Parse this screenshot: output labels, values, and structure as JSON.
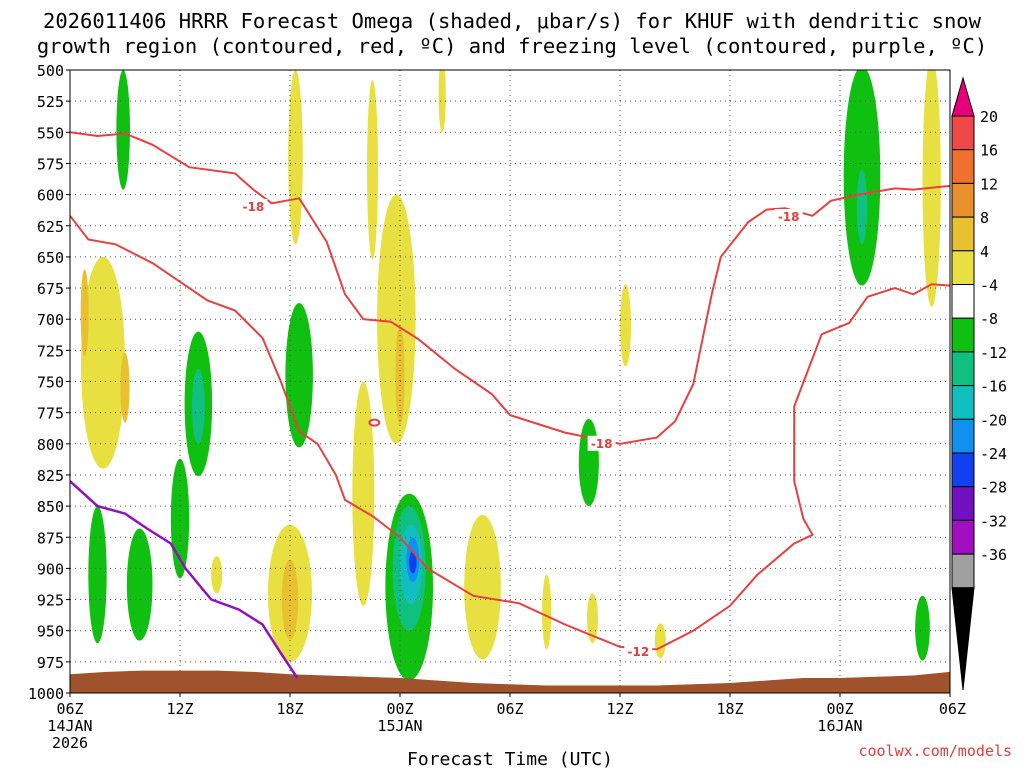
{
  "chart_data": {
    "type": "heatmap",
    "title_line1": "2026011406 HRRR Forecast Omega (shaded, μbar/s) for KHUF with dendritic snow",
    "title_line2": "growth region (contoured, red, ºC) and freezing level (contoured, purple, ºC)",
    "xlabel": "Forecast Time (UTC)",
    "watermark": "coolwx.com/models",
    "x_range_hours": [
      0,
      48
    ],
    "y_range_mb": [
      500,
      1000
    ],
    "x_ticks": [
      {
        "h": 0,
        "label": "06Z",
        "date": "14JAN",
        "year": "2026"
      },
      {
        "h": 6,
        "label": "12Z"
      },
      {
        "h": 12,
        "label": "18Z"
      },
      {
        "h": 18,
        "label": "00Z",
        "date": "15JAN"
      },
      {
        "h": 24,
        "label": "06Z"
      },
      {
        "h": 30,
        "label": "12Z"
      },
      {
        "h": 36,
        "label": "18Z"
      },
      {
        "h": 42,
        "label": "00Z",
        "date": "16JAN"
      },
      {
        "h": 48,
        "label": "06Z"
      }
    ],
    "y_ticks": [
      "500",
      "525",
      "550",
      "575",
      "600",
      "625",
      "650",
      "675",
      "700",
      "725",
      "750",
      "775",
      "800",
      "825",
      "850",
      "875",
      "900",
      "925",
      "950",
      "975",
      "1000"
    ],
    "colorbar": {
      "labels": [
        "20",
        "16",
        "12",
        "8",
        "4",
        "-4",
        "-8",
        "-12",
        "-16",
        "-20",
        "-24",
        "-28",
        "-32",
        "-36"
      ],
      "colors": {
        "top_arrow": "#e8007a",
        "c20": "#f04848",
        "c16": "#f07030",
        "c12": "#e8902c",
        "c8": "#e8c030",
        "c4": "#e8e040",
        "neutral": "#ffffff",
        "cm4": "#10c010",
        "cm8": "#10c080",
        "cm12": "#10c0c0",
        "cm16": "#1090f0",
        "cm20": "#1040f0",
        "cm24": "#7010c0",
        "cm28": "#a010c0",
        "cm32": "#a0a0a0",
        "bottom_arrow": "#000000"
      }
    },
    "isotherm_labels": [
      {
        "text": "-18",
        "h": 10.0,
        "mb": 610
      },
      {
        "text": "-18",
        "h": 39.2,
        "mb": 618
      },
      {
        "text": "-18",
        "h": 29.0,
        "mb": 800
      },
      {
        "text": "-12",
        "h": 31.0,
        "mb": 967
      }
    ],
    "minus18_contour": [
      [
        0,
        550
      ],
      [
        1.5,
        553
      ],
      [
        3,
        551
      ],
      [
        4.5,
        560
      ],
      [
        6.5,
        578
      ],
      [
        9,
        583
      ],
      [
        10,
        596
      ],
      [
        11,
        607
      ],
      [
        12.5,
        603
      ],
      [
        14,
        638
      ],
      [
        15,
        680
      ],
      [
        16,
        700
      ],
      [
        17.5,
        702
      ],
      [
        19,
        716
      ],
      [
        21,
        740
      ],
      [
        23,
        760
      ],
      [
        24,
        777
      ],
      [
        27,
        791
      ],
      [
        30,
        800
      ],
      [
        32,
        795
      ],
      [
        33,
        782
      ],
      [
        34,
        752
      ],
      [
        35,
        680
      ],
      [
        35.5,
        650
      ],
      [
        37,
        622
      ],
      [
        38,
        612
      ],
      [
        39,
        611
      ],
      [
        40.5,
        617
      ],
      [
        41.5,
        605
      ],
      [
        43,
        600
      ],
      [
        45,
        595
      ],
      [
        46,
        596
      ],
      [
        48,
        593
      ]
    ],
    "minus12_contour": [
      [
        0,
        617
      ],
      [
        1,
        636
      ],
      [
        2.5,
        640
      ],
      [
        4.5,
        655
      ],
      [
        6,
        670
      ],
      [
        7.5,
        685
      ],
      [
        9,
        693
      ],
      [
        10.5,
        715
      ],
      [
        11.5,
        750
      ],
      [
        12.5,
        790
      ],
      [
        13.5,
        800
      ],
      [
        14.5,
        825
      ],
      [
        15,
        845
      ],
      [
        16.5,
        858
      ],
      [
        18,
        875
      ],
      [
        19.5,
        900
      ],
      [
        22,
        922
      ],
      [
        24.5,
        928
      ],
      [
        27,
        945
      ],
      [
        30,
        963
      ],
      [
        32,
        965
      ],
      [
        34,
        950
      ],
      [
        36,
        930
      ],
      [
        37.5,
        905
      ],
      [
        39.5,
        880
      ],
      [
        40.5,
        873
      ],
      [
        40,
        860
      ],
      [
        39.5,
        830
      ],
      [
        39.5,
        770
      ],
      [
        41,
        712
      ],
      [
        42.5,
        703
      ],
      [
        43.5,
        682
      ],
      [
        45,
        675
      ],
      [
        46,
        680
      ],
      [
        47,
        672
      ],
      [
        48,
        673
      ]
    ],
    "freezing_level_contour": [
      [
        0,
        830
      ],
      [
        1.5,
        850
      ],
      [
        3,
        856
      ],
      [
        4.2,
        868
      ],
      [
        5.5,
        880
      ],
      [
        6.3,
        900
      ],
      [
        7.7,
        925
      ],
      [
        9.2,
        933
      ],
      [
        10.5,
        945
      ],
      [
        11.5,
        968
      ],
      [
        12.4,
        988
      ]
    ],
    "omega_blobs": [
      {
        "level": -4,
        "h": 2.9,
        "mb": 548,
        "rh": 0.37,
        "rmb": 48
      },
      {
        "level": -4,
        "h": 7.0,
        "mb": 768,
        "rh": 0.75,
        "rmb": 58
      },
      {
        "level": -4,
        "h": 6.0,
        "mb": 860,
        "rh": 0.5,
        "rmb": 48
      },
      {
        "level": -4,
        "h": 1.5,
        "mb": 905,
        "rh": 0.5,
        "rmb": 55
      },
      {
        "level": -4,
        "h": 3.8,
        "mb": 913,
        "rh": 0.7,
        "rmb": 45
      },
      {
        "level": -4,
        "h": 12.5,
        "mb": 745,
        "rh": 0.75,
        "rmb": 58
      },
      {
        "level": -4,
        "h": 18.5,
        "mb": 915,
        "rh": 1.3,
        "rmb": 75
      },
      {
        "level": -4,
        "h": 28.3,
        "mb": 815,
        "rh": 0.55,
        "rmb": 35
      },
      {
        "level": -4,
        "h": 43.2,
        "mb": 585,
        "rh": 1.0,
        "rmb": 88
      },
      {
        "level": -4,
        "h": 46.5,
        "mb": 948,
        "rh": 0.4,
        "rmb": 26
      },
      {
        "level": -8,
        "h": 18.5,
        "mb": 900,
        "rh": 0.9,
        "rmb": 50
      },
      {
        "level": -8,
        "h": 7.0,
        "mb": 770,
        "rh": 0.35,
        "rmb": 30
      },
      {
        "level": -8,
        "h": 43.2,
        "mb": 610,
        "rh": 0.28,
        "rmb": 30
      },
      {
        "level": -12,
        "h": 18.6,
        "mb": 897,
        "rh": 0.6,
        "rmb": 32
      },
      {
        "level": -16,
        "h": 18.7,
        "mb": 893,
        "rh": 0.35,
        "rmb": 18
      },
      {
        "level": -20,
        "h": 18.7,
        "mb": 895,
        "rh": 0.2,
        "rmb": 9
      },
      {
        "level": 4,
        "h": 1.8,
        "mb": 735,
        "rh": 1.2,
        "rmb": 85
      },
      {
        "level": 4,
        "h": 12.0,
        "mb": 920,
        "rh": 1.2,
        "rmb": 55
      },
      {
        "level": 4,
        "h": 12.3,
        "mb": 570,
        "rh": 0.4,
        "rmb": 70
      },
      {
        "level": 4,
        "h": 16.5,
        "mb": 580,
        "rh": 0.3,
        "rmb": 72
      },
      {
        "level": 4,
        "h": 16.0,
        "mb": 840,
        "rh": 0.6,
        "rmb": 90
      },
      {
        "level": 4,
        "h": 17.8,
        "mb": 700,
        "rh": 1.05,
        "rmb": 100
      },
      {
        "level": 4,
        "h": 22.5,
        "mb": 915,
        "rh": 1.0,
        "rmb": 58
      },
      {
        "level": 4,
        "h": 8.0,
        "mb": 905,
        "rh": 0.3,
        "rmb": 15
      },
      {
        "level": 4,
        "h": 26.0,
        "mb": 935,
        "rh": 0.25,
        "rmb": 30
      },
      {
        "level": 4,
        "h": 28.5,
        "mb": 940,
        "rh": 0.3,
        "rmb": 20
      },
      {
        "level": 4,
        "h": 30.3,
        "mb": 705,
        "rh": 0.3,
        "rmb": 33
      },
      {
        "level": 4,
        "h": 32.2,
        "mb": 958,
        "rh": 0.3,
        "rmb": 14
      },
      {
        "level": 4,
        "h": 47.0,
        "mb": 590,
        "rh": 0.5,
        "rmb": 100
      },
      {
        "level": 4,
        "h": 20.3,
        "mb": 520,
        "rh": 0.2,
        "rmb": 30
      },
      {
        "level": 8,
        "h": 12.0,
        "mb": 925,
        "rh": 0.45,
        "rmb": 32
      },
      {
        "level": 8,
        "h": 0.8,
        "mb": 695,
        "rh": 0.22,
        "rmb": 35
      },
      {
        "level": 8,
        "h": 3.0,
        "mb": 755,
        "rh": 0.25,
        "rmb": 28
      },
      {
        "level": 8,
        "h": 18.0,
        "mb": 745,
        "rh": 0.25,
        "rmb": 40
      }
    ],
    "ground_profile_mb": [
      [
        0,
        985
      ],
      [
        2,
        983
      ],
      [
        4,
        982
      ],
      [
        6,
        982
      ],
      [
        8,
        982
      ],
      [
        10,
        983
      ],
      [
        12,
        985
      ],
      [
        14,
        986
      ],
      [
        16,
        987
      ],
      [
        18,
        988
      ],
      [
        20,
        990
      ],
      [
        22,
        992
      ],
      [
        24,
        993
      ],
      [
        26,
        994
      ],
      [
        28,
        994
      ],
      [
        30,
        994
      ],
      [
        32,
        994
      ],
      [
        34,
        993
      ],
      [
        36,
        992
      ],
      [
        38,
        990
      ],
      [
        40,
        988
      ],
      [
        42,
        988
      ],
      [
        44,
        987
      ],
      [
        46,
        986
      ],
      [
        48,
        983
      ]
    ]
  }
}
